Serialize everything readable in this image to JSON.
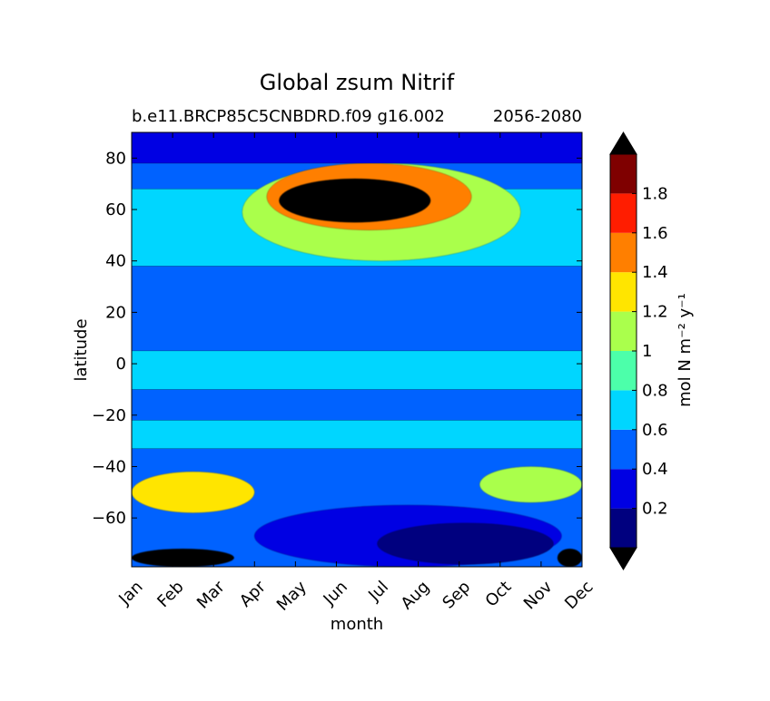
{
  "chart_data": {
    "type": "heatmap",
    "title": "Global zsum Nitrif",
    "subtitle_left": "b.e11.BRCP85C5CNBDRD.f09 g16.002",
    "subtitle_right": "2056-2080",
    "xlabel": "month",
    "ylabel": "latitude",
    "x_ticks": [
      "Jan",
      "Feb",
      "Mar",
      "Apr",
      "May",
      "Jun",
      "Jul",
      "Aug",
      "Sep",
      "Oct",
      "Nov",
      "Dec"
    ],
    "y_ticks": [
      80,
      60,
      40,
      20,
      0,
      -20,
      -40,
      -60
    ],
    "ylim": [
      -79,
      90
    ],
    "colorbar": {
      "label": "mol N m⁻² y⁻¹",
      "levels": [
        0,
        0.2,
        0.4,
        0.6,
        0.8,
        1.0,
        1.2,
        1.4,
        1.6,
        1.8,
        2.0
      ],
      "tick_labels": [
        "0.2",
        "0.4",
        "0.6",
        "0.8",
        "1",
        "1.2",
        "1.4",
        "1.6",
        "1.8"
      ],
      "tick_values": [
        0.2,
        0.4,
        0.6,
        0.8,
        1.0,
        1.2,
        1.4,
        1.6,
        1.8
      ],
      "colors": [
        "#00007f",
        "#0000e3",
        "#0062ff",
        "#00d6ff",
        "#4cffaa",
        "#aaff4c",
        "#ffe500",
        "#ff7f00",
        "#ff1d00",
        "#7f0000"
      ],
      "under_color": "#000000",
      "over_color": "#000000",
      "extend": "both"
    },
    "regions": [
      {
        "name": "background",
        "level": 0.5
      },
      {
        "name": "tropical-band",
        "level": 0.7,
        "lat_range": [
          -10,
          5
        ],
        "month_range": [
          0,
          11
        ]
      },
      {
        "name": "southern-mid-band",
        "level": 0.7,
        "lat_range": [
          -33,
          -22
        ],
        "month_range": [
          0,
          11
        ]
      },
      {
        "name": "northern-band",
        "level": 0.7,
        "lat_range": [
          38,
          68
        ],
        "month_range": [
          0,
          11
        ]
      },
      {
        "name": "arctic-bloom",
        "level": 1.1,
        "lat_range": [
          40,
          78
        ],
        "month_range": [
          2.7,
          9.5
        ]
      },
      {
        "name": "arctic-bloom-core",
        "level": 1.5,
        "lat_range": [
          52,
          78
        ],
        "month_range": [
          3.3,
          8.3
        ]
      },
      {
        "name": "arctic-bloom-max",
        "level": 2.1,
        "lat_range": [
          55,
          72
        ],
        "month_range": [
          3.6,
          7.3
        ]
      },
      {
        "name": "southern-ocean-jan",
        "level": 1.3,
        "lat_range": [
          -58,
          -42
        ],
        "month_range": [
          0,
          3
        ]
      },
      {
        "name": "southern-ocean-nov",
        "level": 1.1,
        "lat_range": [
          -54,
          -40
        ],
        "month_range": [
          8.5,
          11
        ]
      },
      {
        "name": "antarctic-low",
        "level": 0.3,
        "lat_range": [
          -79,
          -55
        ],
        "month_range": [
          3,
          10.5
        ]
      },
      {
        "name": "antarctic-min",
        "level": 0.1,
        "lat_range": [
          -78,
          -62
        ],
        "month_range": [
          6,
          10.3
        ]
      },
      {
        "name": "antarctic-edge-jan",
        "level": 2.1,
        "lat_range": [
          -79,
          -72
        ],
        "month_range": [
          0,
          2.5
        ]
      },
      {
        "name": "antarctic-edge-dec",
        "level": 2.1,
        "lat_range": [
          -79,
          -72
        ],
        "month_range": [
          10.4,
          11
        ]
      },
      {
        "name": "north-pole-low",
        "level": 0.3,
        "lat_range": [
          78,
          90
        ],
        "month_range": [
          0,
          11
        ]
      }
    ]
  }
}
